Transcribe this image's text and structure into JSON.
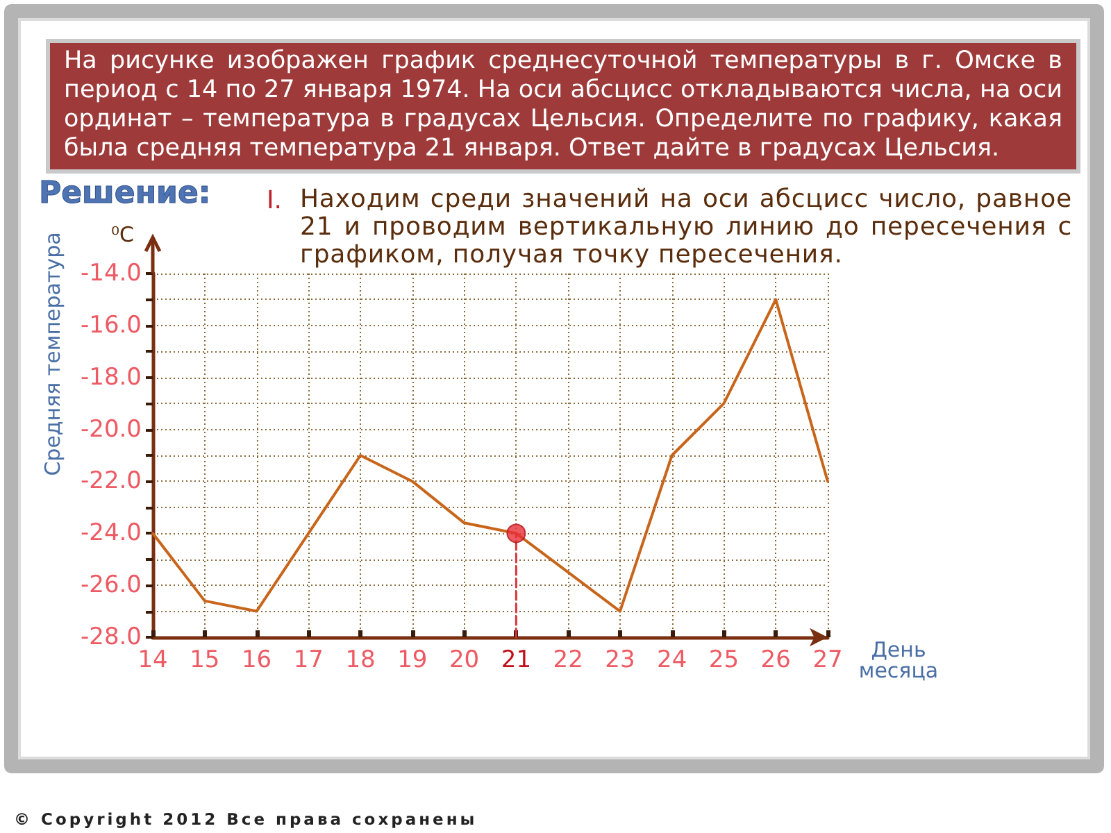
{
  "chart_data": {
    "type": "line",
    "title": "На рисунке изображен график среднесуточной температуры в г. Омске в период с 14 по 27 января 1974. На оси абсцисс откладываются числа, на оси ординат – температура в градусах Цельсия. Определите по графику, какая была средняя температура 21 января. Ответ дайте в градусах Цельсия.",
    "xlabel": "День месяца",
    "ylabel": "Средняя температура",
    "annotations": [
      "⁰C",
      "Решение:",
      "I.",
      "Находим среди значений на оси абсцисс число, равное 21 и проводим вертикальную линию до пересечения с графиком, получая точку пересечения.",
      "© Copyright 2012 Все права сохранены"
    ],
    "x": [
      14,
      15,
      16,
      17,
      18,
      19,
      20,
      21,
      22,
      23,
      24,
      25,
      26,
      27
    ],
    "series": [
      {
        "color": "#c8651b",
        "values": [
          -24,
          -26.6,
          -27,
          -24,
          -21,
          -22,
          -23.6,
          -24,
          -25.5,
          -27,
          -21,
          -19,
          -15,
          -22
        ]
      },
      {
        "type": "line",
        "x": [
          21,
          21
        ],
        "values": [
          -28,
          -24
        ],
        "color": "#d9343a",
        "line_style": "dashed"
      },
      {
        "type": "scatter",
        "values": [
          null,
          null,
          null,
          null,
          null,
          null,
          null,
          -24,
          null,
          null,
          null,
          null,
          null,
          null
        ],
        "color": "#e8303a",
        "marker": "circle"
      }
    ],
    "xlim": [
      14,
      27
    ],
    "xticks": [
      14,
      15,
      16,
      17,
      18,
      19,
      20,
      21,
      22,
      23,
      24,
      25,
      26,
      27
    ],
    "ylim": [
      -28,
      -14
    ],
    "yticks": [
      {
        "value": -28,
        "label": "-28.0"
      },
      {
        "value": -27,
        "label": null
      },
      {
        "value": -26,
        "label": "-26.0"
      },
      {
        "value": -25,
        "label": null
      },
      {
        "value": -24,
        "label": "-24.0"
      },
      {
        "value": -23,
        "label": null
      },
      {
        "value": -22,
        "label": "-22.0"
      },
      {
        "value": -21,
        "label": null
      },
      {
        "value": -20,
        "label": "-20.0"
      },
      {
        "value": -19,
        "label": null
      },
      {
        "value": -18,
        "label": "-18.0"
      },
      {
        "value": -17,
        "label": null
      },
      {
        "value": -16,
        "label": "-16.0"
      },
      {
        "value": -15,
        "label": null
      },
      {
        "value": -14,
        "label": "-14.0"
      }
    ],
    "grid": true,
    "marker": "none",
    "line_style": "solid"
  }
}
